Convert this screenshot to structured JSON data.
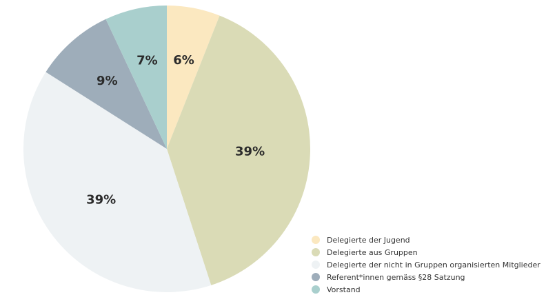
{
  "chart_data": {
    "type": "pie",
    "start_angle": "top, clockwise",
    "legend_position": "bottom-right",
    "categories": [
      "Delegierte der Jugend",
      "Delegierte aus Gruppen",
      "Delegierte der nicht in Gruppen organisierten Mitglieder",
      "Referent*innen gemäss §28 Satzung",
      "Vorstand"
    ],
    "values": [
      6,
      39,
      39,
      9,
      7
    ],
    "labels": [
      "6%",
      "39%",
      "39%",
      "9%",
      "7%"
    ],
    "colors": [
      "#fbe8c0",
      "#dadbb6",
      "#eef2f4",
      "#9eadba",
      "#a9cfcd"
    ]
  }
}
